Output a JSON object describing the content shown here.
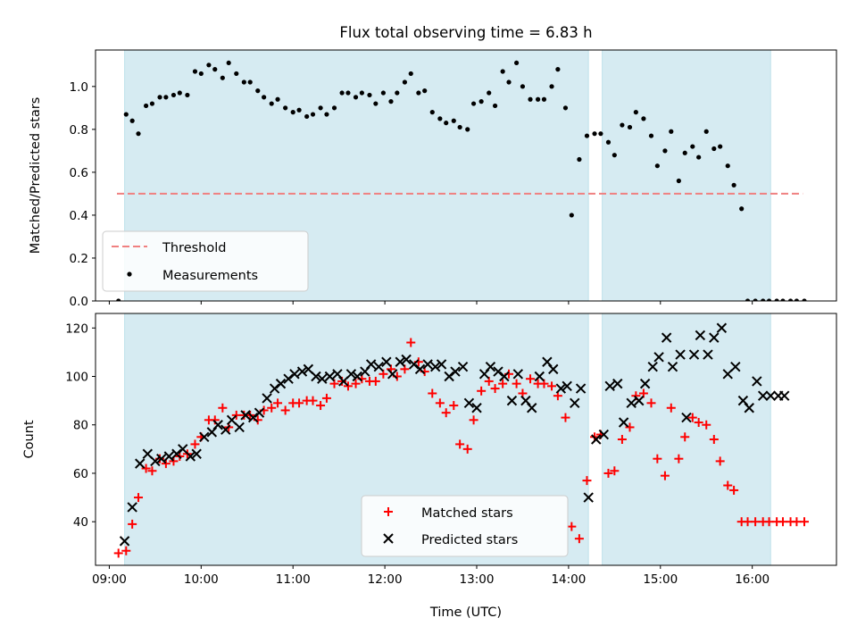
{
  "title": "Flux total observing time = 6.83 h",
  "colors": {
    "band": "#add8e6",
    "threshold": "#f08080",
    "matched": "#ff0000",
    "predicted": "#000000",
    "measurement": "#000000"
  },
  "chart_data": [
    {
      "type": "scatter",
      "ylabel": "Matched/Predicted stars",
      "xlabel": "",
      "xlim": [
        "08:51",
        "16:55"
      ],
      "ylim": [
        0,
        1.17
      ],
      "yticks": [
        "0.0",
        "0.2",
        "0.4",
        "0.6",
        "0.8",
        "1.0"
      ],
      "observing_windows": [
        [
          "09:10",
          "14:13"
        ],
        [
          "14:22",
          "16:12"
        ]
      ],
      "threshold": {
        "name": "Threshold",
        "y": 0.5,
        "x_range": [
          "09:05",
          "16:33"
        ]
      },
      "legend_position": "lower left",
      "series": [
        {
          "name": "Measurements",
          "x": [
            "09:06",
            "09:11",
            "09:15",
            "09:19",
            "09:24",
            "09:28",
            "09:33",
            "09:37",
            "09:42",
            "09:46",
            "09:51",
            "09:56",
            "10:00",
            "10:05",
            "10:09",
            "10:14",
            "10:18",
            "10:23",
            "10:28",
            "10:32",
            "10:37",
            "10:41",
            "10:46",
            "10:50",
            "10:55",
            "11:00",
            "11:04",
            "11:09",
            "11:13",
            "11:18",
            "11:22",
            "11:27",
            "11:32",
            "11:36",
            "11:41",
            "11:45",
            "11:50",
            "11:54",
            "11:59",
            "12:04",
            "12:08",
            "12:13",
            "12:17",
            "12:22",
            "12:26",
            "12:31",
            "12:36",
            "12:40",
            "12:45",
            "12:49",
            "12:54",
            "12:58",
            "13:03",
            "13:08",
            "13:12",
            "13:17",
            "13:21",
            "13:26",
            "13:30",
            "13:35",
            "13:40",
            "13:44",
            "13:49",
            "13:53",
            "13:58",
            "14:02",
            "14:07",
            "14:12",
            "14:17",
            "14:21",
            "14:26",
            "14:30",
            "14:35",
            "14:40",
            "14:44",
            "14:49",
            "14:54",
            "14:58",
            "15:03",
            "15:07",
            "15:12",
            "15:16",
            "15:21",
            "15:25",
            "15:30",
            "15:35",
            "15:39",
            "15:44",
            "15:48",
            "15:53",
            "15:57",
            "16:02",
            "16:07",
            "16:11",
            "16:16",
            "16:20",
            "16:25",
            "16:29",
            "16:34"
          ],
          "y": [
            0.0,
            0.87,
            0.84,
            0.78,
            0.91,
            0.92,
            0.95,
            0.95,
            0.96,
            0.97,
            0.96,
            1.07,
            1.06,
            1.1,
            1.08,
            1.04,
            1.11,
            1.06,
            1.02,
            1.02,
            0.98,
            0.95,
            0.92,
            0.94,
            0.9,
            0.88,
            0.89,
            0.86,
            0.87,
            0.9,
            0.87,
            0.9,
            0.97,
            0.97,
            0.95,
            0.97,
            0.96,
            0.92,
            0.97,
            0.93,
            0.97,
            1.02,
            1.06,
            0.97,
            0.98,
            0.88,
            0.85,
            0.83,
            0.84,
            0.81,
            0.8,
            0.92,
            0.93,
            0.97,
            0.91,
            1.07,
            1.02,
            1.11,
            1.0,
            0.94,
            0.94,
            0.94,
            1.0,
            1.08,
            0.9,
            0.4,
            0.66,
            0.77,
            0.78,
            0.78,
            0.74,
            0.68,
            0.82,
            0.81,
            0.88,
            0.85,
            0.77,
            0.63,
            0.7,
            0.79,
            0.56,
            0.69,
            0.72,
            0.67,
            0.79,
            0.71,
            0.72,
            0.63,
            0.54,
            0.43,
            0.0,
            0.0,
            0.0,
            0.0,
            0.0,
            0.0,
            0.0,
            0.0,
            0.0
          ]
        }
      ]
    },
    {
      "type": "scatter",
      "ylabel": "Count",
      "xlabel": "Time (UTC)",
      "xlim": [
        "08:51",
        "16:55"
      ],
      "ylim": [
        22,
        126
      ],
      "yticks": [
        "40",
        "60",
        "80",
        "100",
        "120"
      ],
      "xticks": [
        "09:00",
        "10:00",
        "11:00",
        "12:00",
        "13:00",
        "14:00",
        "15:00",
        "16:00"
      ],
      "observing_windows": [
        [
          "09:10",
          "14:13"
        ],
        [
          "14:22",
          "16:12"
        ]
      ],
      "legend_position": "lower center",
      "series": [
        {
          "name": "Matched stars",
          "marker": "plus",
          "x": [
            "09:06",
            "09:11",
            "09:15",
            "09:19",
            "09:24",
            "09:28",
            "09:33",
            "09:37",
            "09:42",
            "09:46",
            "09:51",
            "09:56",
            "10:00",
            "10:05",
            "10:09",
            "10:14",
            "10:18",
            "10:23",
            "10:28",
            "10:32",
            "10:37",
            "10:41",
            "10:46",
            "10:50",
            "10:55",
            "11:00",
            "11:04",
            "11:09",
            "11:13",
            "11:18",
            "11:22",
            "11:27",
            "11:32",
            "11:36",
            "11:41",
            "11:45",
            "11:50",
            "11:54",
            "11:59",
            "12:04",
            "12:08",
            "12:13",
            "12:17",
            "12:22",
            "12:26",
            "12:31",
            "12:36",
            "12:40",
            "12:45",
            "12:49",
            "12:54",
            "12:58",
            "13:03",
            "13:08",
            "13:12",
            "13:17",
            "13:21",
            "13:26",
            "13:30",
            "13:35",
            "13:40",
            "13:44",
            "13:49",
            "13:53",
            "13:58",
            "14:02",
            "14:07",
            "14:12",
            "14:17",
            "14:21",
            "14:26",
            "14:30",
            "14:35",
            "14:40",
            "14:44",
            "14:49",
            "14:54",
            "14:58",
            "15:03",
            "15:07",
            "15:12",
            "15:16",
            "15:21",
            "15:25",
            "15:30",
            "15:35",
            "15:39",
            "15:44",
            "15:48",
            "15:53",
            "15:57",
            "16:02",
            "16:07",
            "16:11",
            "16:16",
            "16:20",
            "16:25",
            "16:29",
            "16:34"
          ],
          "y": [
            27,
            28,
            39,
            50,
            62,
            61,
            66,
            64,
            65,
            67,
            68,
            72,
            75,
            82,
            82,
            87,
            79,
            84,
            84,
            84,
            82,
            86,
            87,
            89,
            86,
            89,
            89,
            90,
            90,
            88,
            91,
            97,
            98,
            96,
            97,
            99,
            98,
            98,
            101,
            103,
            100,
            103,
            114,
            106,
            102,
            93,
            89,
            85,
            88,
            72,
            70,
            82,
            94,
            98,
            95,
            97,
            101,
            97,
            93,
            99,
            97,
            97,
            96,
            92,
            83,
            38,
            33,
            57,
            75,
            76,
            60,
            61,
            74,
            79,
            92,
            93,
            89,
            66,
            59,
            87,
            66,
            75,
            83,
            81,
            80,
            74,
            65,
            55,
            53,
            40,
            40,
            40,
            40,
            40,
            40,
            40,
            40,
            40,
            40
          ]
        },
        {
          "name": "Predicted stars",
          "marker": "x",
          "x": [
            "09:10",
            "09:15",
            "09:20",
            "09:25",
            "09:30",
            "09:34",
            "09:39",
            "09:44",
            "09:48",
            "09:53",
            "09:57",
            "10:02",
            "10:07",
            "10:11",
            "10:16",
            "10:20",
            "10:25",
            "10:29",
            "10:34",
            "10:38",
            "10:43",
            "10:48",
            "10:52",
            "10:57",
            "11:01",
            "11:06",
            "11:10",
            "11:15",
            "11:19",
            "11:24",
            "11:29",
            "11:33",
            "11:38",
            "11:42",
            "11:47",
            "11:51",
            "11:56",
            "12:01",
            "12:05",
            "12:10",
            "12:14",
            "12:19",
            "12:23",
            "12:28",
            "12:33",
            "12:37",
            "12:42",
            "12:46",
            "12:51",
            "12:55",
            "13:00",
            "13:05",
            "13:09",
            "13:14",
            "13:18",
            "13:23",
            "13:27",
            "13:32",
            "13:36",
            "13:41",
            "13:46",
            "13:50",
            "13:55",
            "13:59",
            "14:04",
            "14:08",
            "14:13",
            "14:18",
            "14:23",
            "14:27",
            "14:32",
            "14:36",
            "14:41",
            "14:46",
            "14:50",
            "14:55",
            "14:59",
            "15:04",
            "15:08",
            "15:13",
            "15:17",
            "15:22",
            "15:26",
            "15:31",
            "15:35",
            "15:40",
            "15:44",
            "15:49",
            "15:54",
            "15:58",
            "16:03",
            "16:07",
            "16:12",
            "16:17",
            "16:21"
          ],
          "y": [
            32,
            46,
            64,
            68,
            65,
            66,
            67,
            68,
            70,
            67,
            68,
            75,
            77,
            80,
            78,
            82,
            79,
            84,
            83,
            85,
            91,
            95,
            97,
            99,
            101,
            102,
            103,
            100,
            99,
            100,
            101,
            98,
            101,
            100,
            102,
            105,
            104,
            106,
            101,
            106,
            107,
            105,
            103,
            105,
            104,
            105,
            100,
            102,
            104,
            89,
            87,
            101,
            104,
            102,
            100,
            90,
            101,
            90,
            87,
            100,
            106,
            103,
            95,
            96,
            89,
            95,
            50,
            74,
            76,
            96,
            97,
            81,
            89,
            90,
            97,
            104,
            108,
            116,
            104,
            109,
            83,
            109,
            117,
            109,
            116,
            120,
            101,
            104,
            90,
            87,
            98,
            92,
            92,
            92,
            92
          ]
        }
      ]
    }
  ]
}
